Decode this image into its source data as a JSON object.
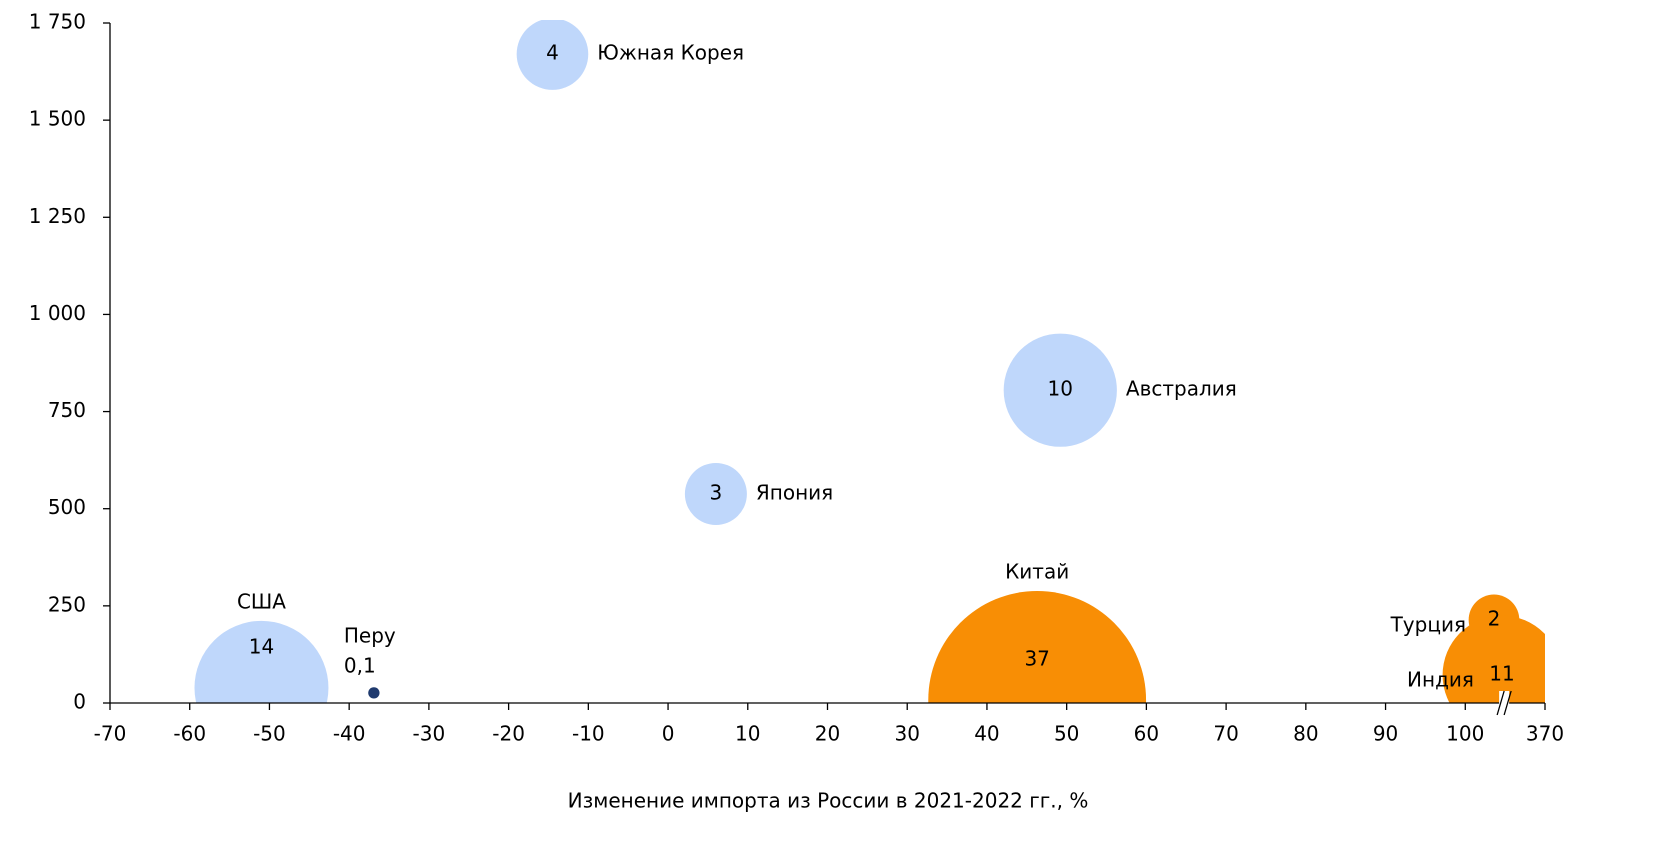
{
  "chart_data": {
    "type": "bubble",
    "xlabel": "Изменение импорта из России  в 2021-2022 гг., %",
    "labels": [
      "Южная Корея",
      "Австралия",
      "Япония",
      "США",
      "Перу",
      "Китай",
      "Турция",
      "Индия"
    ],
    "x": [
      -14.5,
      49.2,
      6,
      -51,
      -36.9,
      46.3,
      103.6,
      104.6
    ],
    "values": [
      1670,
      805,
      538,
      39,
      26,
      8,
      214,
      72
    ],
    "sizes": [
      4,
      10,
      3,
      14,
      0.1,
      37,
      2,
      11
    ],
    "value_labels": [
      "4",
      "10",
      "3",
      "14",
      "0,1",
      "37",
      "2",
      "11"
    ],
    "colors": [
      "#bfd7fb",
      "#bfd7fb",
      "#bfd7fb",
      "#bfd7fb",
      "#1f3a6e",
      "#f88e05",
      "#f88e05",
      "#f88e05"
    ],
    "xlim": [
      -70,
      370
    ],
    "xbreak": [
      105,
      365
    ],
    "xticks": [
      -70,
      -60,
      -50,
      -40,
      -30,
      -20,
      -10,
      0,
      10,
      20,
      30,
      40,
      50,
      60,
      70,
      80,
      90,
      100,
      370
    ],
    "ylim": [
      0,
      1750
    ],
    "yticks": [
      0,
      250,
      500,
      750,
      {
        "value": 1000,
        "label": "1 000"
      },
      {
        "value": 1250,
        "label": "1 250"
      },
      {
        "value": 1500,
        "label": "1 500"
      },
      {
        "value": 1750,
        "label": "1 750"
      }
    ],
    "grid": false
  }
}
